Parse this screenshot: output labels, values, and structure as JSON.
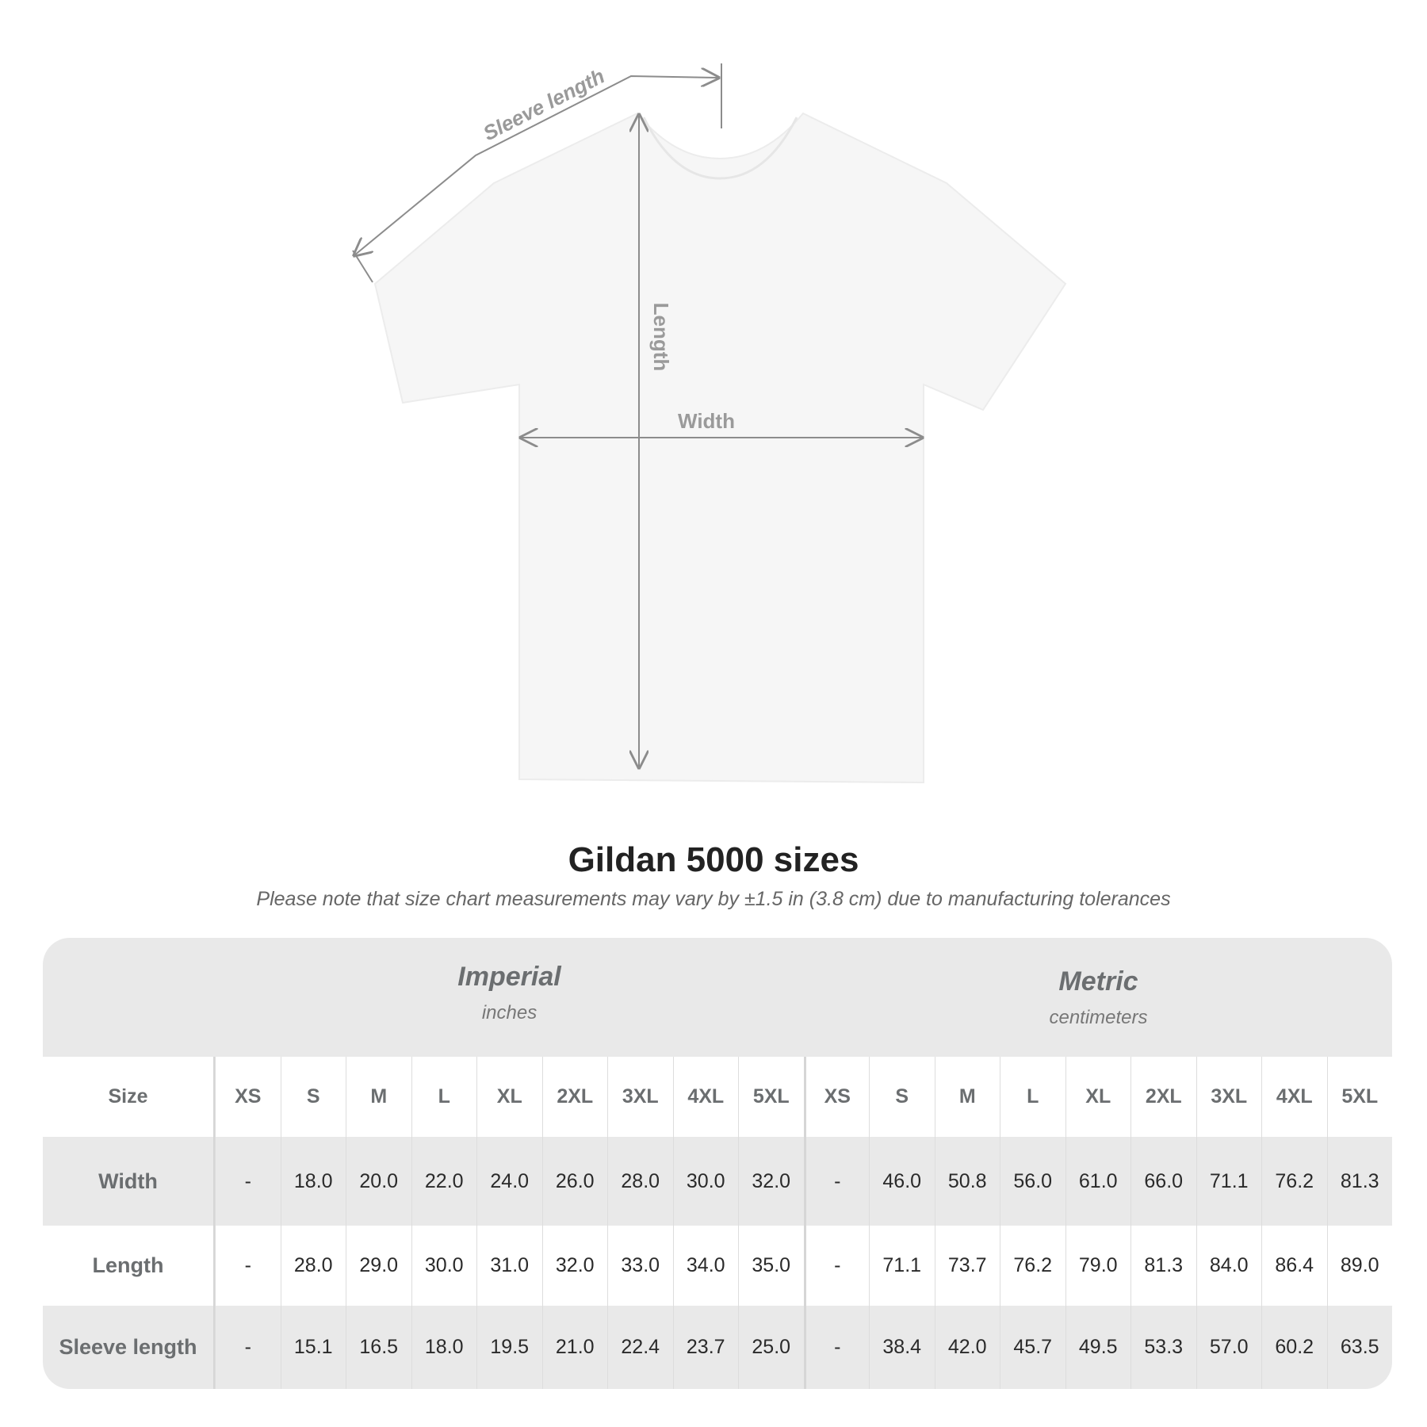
{
  "diagram": {
    "labels": {
      "sleeve": "Sleeve length",
      "length": "Length",
      "width": "Width"
    },
    "colors": {
      "shirt": "#f6f6f6",
      "lines": "#8c8c8c",
      "label_text": "#9a9a9a"
    }
  },
  "title": "Gildan 5000 sizes",
  "note": "Please note that size chart measurements may vary by ±1.5 in (3.8 cm) due to manufacturing tolerances",
  "table": {
    "groups": [
      {
        "name": "Imperial",
        "unit": "inches"
      },
      {
        "name": "Metric",
        "unit": "centimeters"
      }
    ],
    "size_label": "Size",
    "sizes": [
      "XS",
      "S",
      "M",
      "L",
      "XL",
      "2XL",
      "3XL",
      "4XL",
      "5XL"
    ],
    "rows": [
      {
        "label": "Width",
        "imperial": [
          "-",
          "18.0",
          "20.0",
          "22.0",
          "24.0",
          "26.0",
          "28.0",
          "30.0",
          "32.0"
        ],
        "metric": [
          "-",
          "46.0",
          "50.8",
          "56.0",
          "61.0",
          "66.0",
          "71.1",
          "76.2",
          "81.3"
        ]
      },
      {
        "label": "Length",
        "imperial": [
          "-",
          "28.0",
          "29.0",
          "30.0",
          "31.0",
          "32.0",
          "33.0",
          "34.0",
          "35.0"
        ],
        "metric": [
          "-",
          "71.1",
          "73.7",
          "76.2",
          "79.0",
          "81.3",
          "84.0",
          "86.4",
          "89.0"
        ]
      },
      {
        "label": "Sleeve length",
        "imperial": [
          "-",
          "15.1",
          "16.5",
          "18.0",
          "19.5",
          "21.0",
          "22.4",
          "23.7",
          "25.0"
        ],
        "metric": [
          "-",
          "38.4",
          "42.0",
          "45.7",
          "49.5",
          "53.3",
          "57.0",
          "60.2",
          "63.5"
        ]
      }
    ],
    "colors": {
      "band": "#e9e9e9",
      "header_text": "#6b6e70",
      "value_text": "#2a2a2a"
    }
  }
}
